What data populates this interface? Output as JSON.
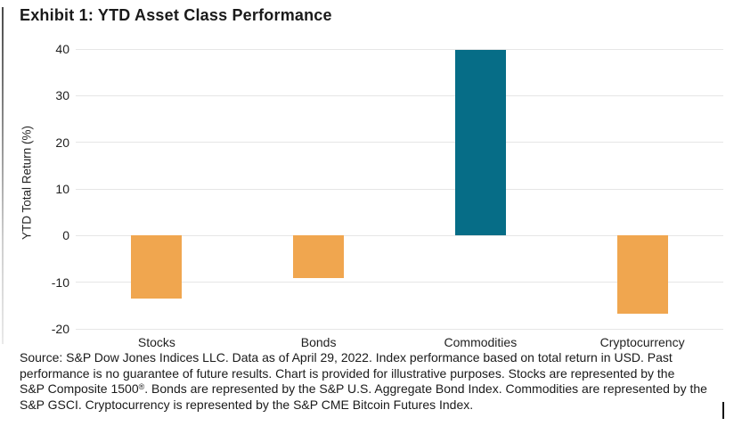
{
  "page": {
    "title": "Exhibit 1: YTD Asset Class Performance"
  },
  "chart_data": {
    "type": "bar",
    "title": "Exhibit 1: YTD Asset Class Performance",
    "categories": [
      "Stocks",
      "Bonds",
      "Commodities",
      "Cryptocurrency"
    ],
    "values": [
      -13.5,
      -9.2,
      39.8,
      -16.8
    ],
    "bar_colors": [
      "#F0A64F",
      "#F0A64F",
      "#066D87",
      "#F0A64F"
    ],
    "xlabel": "",
    "ylabel": "YTD Total Return (%)",
    "ylim": [
      -20,
      40
    ],
    "yticks": [
      40,
      30,
      20,
      10,
      0,
      -10,
      -20
    ],
    "grid": true,
    "gridline_color": "#E6E6E6",
    "legend_position": "none",
    "colors": {
      "negative_bar": "#F0A64F",
      "positive_bar": "#066D87",
      "text": "#1A1A1A"
    }
  },
  "footer": {
    "lines": [
      "Source: S&P Dow Jones Indices LLC. Data as of April 29, 2022. Index performance based on total return in USD. Past",
      "performance is no guarantee of future results. Chart is provided for illustrative purposes. Stocks are represented by the",
      "S&P Composite 1500®. Bonds are represented by the S&P U.S. Aggregate Bond Index. Commodities are represented by the",
      "S&P GSCI. Cryptocurrency is represented by the S&P CME Bitcoin Futures Index."
    ]
  }
}
